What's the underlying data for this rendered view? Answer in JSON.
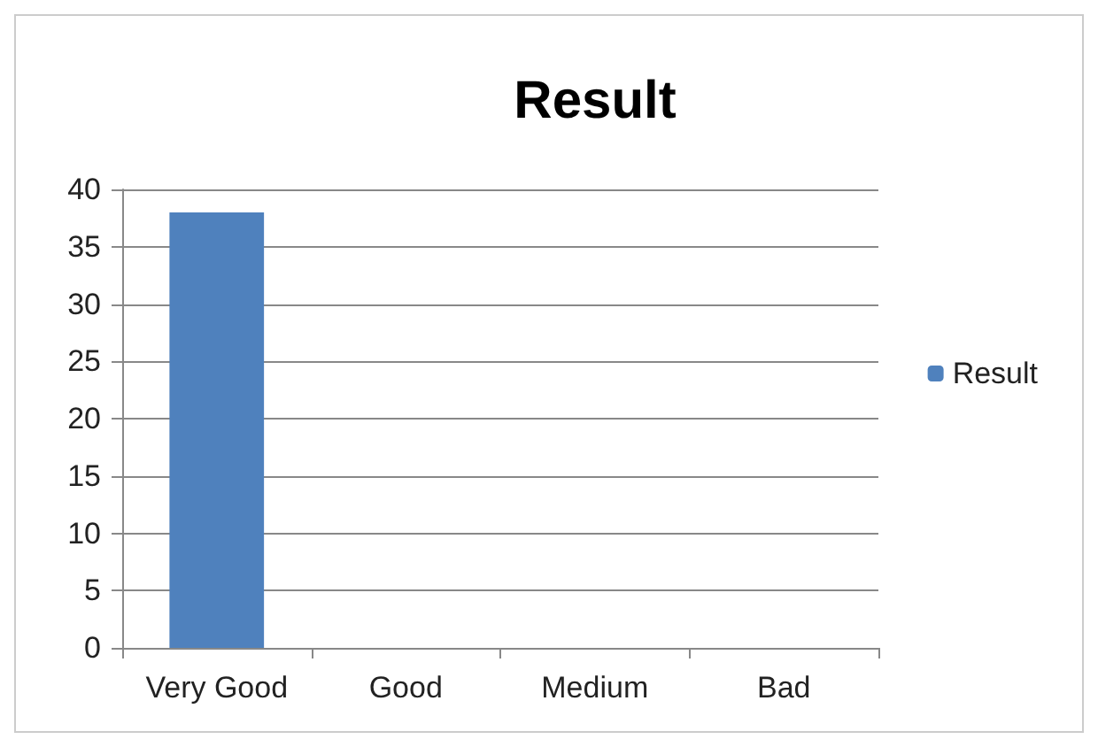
{
  "chart_data": {
    "type": "bar",
    "title": "Result",
    "categories": [
      "Very Good",
      "Good",
      "Medium",
      "Bad"
    ],
    "series": [
      {
        "name": "Result",
        "color": "#4f81bd",
        "values": [
          38,
          0,
          0,
          0
        ]
      }
    ],
    "ylim": [
      0,
      40
    ],
    "yticks": [
      0,
      5,
      10,
      15,
      20,
      25,
      30,
      35,
      40
    ],
    "grid": "y",
    "legend": "right"
  }
}
